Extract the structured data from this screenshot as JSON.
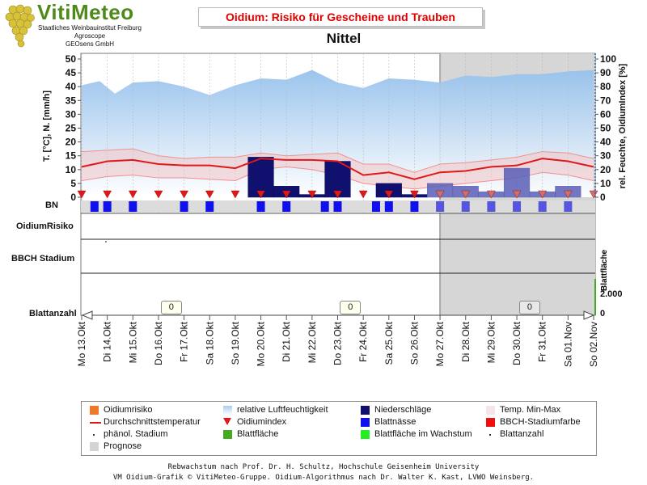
{
  "header": {
    "logo_name": "VitiMeteo",
    "logo_lines": [
      "Staatliches Weinbauinstitut Freiburg",
      "Agroscope",
      "GEOsens GmbH"
    ],
    "title": "Oidium: Risiko für Gescheine und Trauben",
    "location": "Nittel"
  },
  "axes": {
    "left_label": "T. [°C], N. [mm/h]",
    "right_label": "rel. Feuchte, OidiumIndex [%]",
    "left_ticks": [
      "0",
      "5",
      "10",
      "15",
      "20",
      "25",
      "30",
      "35",
      "40",
      "45",
      "50"
    ],
    "right_ticks": [
      "0",
      "10",
      "20",
      "30",
      "40",
      "50",
      "60",
      "70",
      "80",
      "90",
      "100"
    ],
    "bottom_right_label": "Blattfläche",
    "bottom_right_ticks": [
      "2.000",
      "0"
    ]
  },
  "row_labels": {
    "bn": "BN",
    "risk": "OidiumRisiko",
    "bbch": "BBCH Stadium",
    "leaves": "Blattanzahl"
  },
  "leaf_counts": [
    "0",
    "0",
    "0"
  ],
  "chart_data": {
    "type": "line",
    "x": [
      "Mo 13.Okt",
      "Di 14.Okt",
      "Mi 15.Okt",
      "Do 16.Okt",
      "Fr 17.Okt",
      "Sa 18.Okt",
      "So 19.Okt",
      "Mo 20.Okt",
      "Di 21.Okt",
      "Mi 22.Okt",
      "Do 23.Okt",
      "Fr 24.Okt",
      "Sa 25.Okt",
      "So 26.Okt",
      "Mo 27.Okt",
      "Di 28.Okt",
      "Mi 29.Okt",
      "Do 30.Okt",
      "Fr 31.Okt",
      "Sa 01.Nov",
      "So 02.Nov"
    ],
    "x_numeric": [
      0,
      1,
      2,
      3,
      4,
      5,
      6,
      7,
      8,
      9,
      10,
      11,
      12,
      13,
      14,
      15,
      16,
      17,
      18,
      19,
      20
    ],
    "forecast_start": 14,
    "left_ylim": [
      0,
      50
    ],
    "right_ylim": [
      0,
      100
    ],
    "series": [
      {
        "name": "relative Luftfeuchtigkeit",
        "axis": "right",
        "x": [
          0,
          0.7,
          1.3,
          2,
          3,
          4,
          5,
          6,
          7,
          8,
          9,
          10,
          11,
          12,
          13,
          14,
          15,
          16,
          17,
          18,
          19,
          20
        ],
        "values": [
          81,
          84,
          75,
          83,
          84,
          80,
          74,
          81,
          86,
          85,
          92,
          83,
          79,
          86,
          85,
          83,
          88,
          87,
          89,
          89,
          91,
          92
        ]
      },
      {
        "name": "Durchschnittstemperatur",
        "axis": "left",
        "x": [
          0,
          1,
          2,
          3,
          4,
          5,
          6,
          7,
          8,
          9,
          10,
          11,
          12,
          13,
          14,
          15,
          16,
          17,
          18,
          19,
          20
        ],
        "values": [
          11,
          13,
          13.5,
          12,
          11.5,
          11.5,
          10.5,
          14,
          13.5,
          13.5,
          13,
          8,
          9,
          6.5,
          9,
          9.5,
          11,
          11.5,
          14,
          13,
          11
        ]
      },
      {
        "name": "Temp. Min-Max",
        "axis": "left",
        "x": [
          0,
          1,
          2,
          3,
          4,
          5,
          6,
          7,
          8,
          9,
          10,
          11,
          12,
          13,
          14,
          15,
          16,
          17,
          18,
          19,
          20
        ],
        "min": [
          6,
          7.5,
          8,
          7,
          7,
          6.5,
          6,
          10,
          11,
          10,
          8,
          5,
          4,
          3,
          4,
          5,
          6,
          7,
          9,
          8,
          6
        ],
        "max": [
          16.5,
          17,
          17.5,
          15,
          14,
          14.5,
          14.5,
          16,
          15,
          15.5,
          16,
          12,
          12,
          9,
          12,
          12.5,
          13.5,
          14.5,
          16.5,
          16,
          14
        ]
      },
      {
        "name": "Niederschläge",
        "axis": "left",
        "x": [
          7,
          8,
          9,
          10,
          12,
          13,
          14,
          15,
          16,
          17,
          18,
          19
        ],
        "values": [
          14.5,
          4,
          1,
          13,
          5,
          1,
          5,
          4,
          2,
          10.5,
          2,
          4
        ]
      },
      {
        "name": "Oidiumindex",
        "axis": "right",
        "x": [
          0,
          1,
          2,
          3,
          4,
          5,
          6,
          7,
          8,
          9,
          10,
          11,
          12,
          13,
          14,
          15,
          16,
          17,
          18,
          19,
          20
        ],
        "values": [
          0,
          0,
          0,
          0,
          0,
          0,
          0,
          0,
          0,
          0,
          0,
          0,
          0,
          0,
          0,
          0,
          0,
          0,
          0,
          0,
          0
        ]
      }
    ],
    "blattnaesse_x": [
      0.5,
      1,
      2,
      4,
      5,
      7,
      8,
      9.5,
      10,
      11.5,
      12,
      13,
      14,
      15,
      16,
      17,
      18,
      19
    ],
    "leaf_count_x": [
      3.5,
      10.5,
      17.5
    ],
    "ylabel": "T. [°C], N. [mm/h]",
    "y2label": "rel. Feuchte, OidiumIndex [%]",
    "legend_placement": "bottom"
  },
  "legend": {
    "items": [
      {
        "label": "Oidiumrisiko",
        "color": "#f07828",
        "kind": "square"
      },
      {
        "label": "relative Luftfeuchtigkeit",
        "color": "#a8cbee",
        "kind": "gradient"
      },
      {
        "label": "Niederschläge",
        "color": "#10106e",
        "kind": "square"
      },
      {
        "label": "Temp. Min-Max",
        "color": "#f4e6e6",
        "kind": "square"
      },
      {
        "label": "Durchschnittstemperatur",
        "color": "#e01818",
        "kind": "line"
      },
      {
        "label": "Oidiumindex",
        "color": "#e01818",
        "kind": "triangle"
      },
      {
        "label": "Blattnässe",
        "color": "#1010ee",
        "kind": "square"
      },
      {
        "label": "BBCH-Stadiumfarbe",
        "color": "#ee1010",
        "kind": "square"
      },
      {
        "label": "phänol. Stadium",
        "color": "#333333",
        "kind": "dot"
      },
      {
        "label": "Blattfläche",
        "color": "#44aa22",
        "kind": "square"
      },
      {
        "label": "Blattfläche im Wachstum",
        "color": "#22ee22",
        "kind": "square"
      },
      {
        "label": "Blattanzahl",
        "color": "#333333",
        "kind": "dot"
      },
      {
        "label": "Prognose",
        "color": "#d4d4d4",
        "kind": "square"
      }
    ]
  },
  "footer": {
    "line1": "Rebwachstum nach Prof. Dr. H. Schultz, Hochschule Geisenheim University",
    "line2": "VM Oidium-Grafik © VitiMeteo-Gruppe. Oidium-Algorithmus nach Dr. Walter K. Kast, LVWO Weinsberg."
  }
}
